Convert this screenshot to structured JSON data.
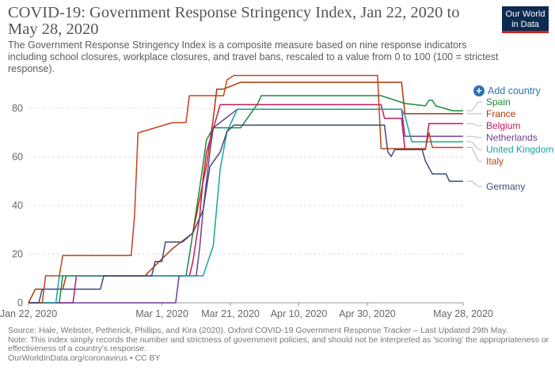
{
  "header": {
    "title": "COVID-19: Government Response Stringency Index, Jan 22, 2020 to May 28, 2020",
    "subtitle": "The Government Response Stringency Index is a composite measure based on nine response indicators including school closures, workplace closures, and travel bans, rescaled to a value from 0 to 100 (100 = strictest response)."
  },
  "logo": {
    "line1": "Our World",
    "line2": "in Data"
  },
  "controls": {
    "add_country": "Add country",
    "add_icon": "plus-circle-icon"
  },
  "footer": {
    "source": "Source: Hale, Webster, Petherick, Phillips, and Kira (2020). Oxford COVID-19 Government Response Tracker – Last Updated 29th May.",
    "note": "Note: This index simply records the number and strictness of government policies, and should not be interpreted as 'scoring' the appropriateness or effectiveness of a country's response.",
    "credit": "OurWorldInData.org/coronavirus • CC BY"
  },
  "chart_data": {
    "type": "line",
    "title": "COVID-19: Government Response Stringency Index, Jan 22, 2020 to May 28, 2020",
    "xlabel": "",
    "ylabel": "",
    "x_ticks": [
      "Jan 22, 2020",
      "Mar 1, 2020",
      "Mar 21, 2020",
      "Apr 10, 2020",
      "Apr 30, 2020",
      "May 28, 2020"
    ],
    "y_ticks": [
      0,
      20,
      40,
      60,
      80
    ],
    "ylim": [
      0,
      95
    ],
    "xlim": [
      "2020-01-22",
      "2020-05-28"
    ],
    "grid": "horizontal dashed",
    "legend": "right, labels at line ends",
    "series": [
      {
        "name": "Spain",
        "color": "#1a8a3a",
        "points": [
          [
            "2020-01-22",
            0
          ],
          [
            "2020-01-31",
            0
          ],
          [
            "2020-02-01",
            11.1
          ],
          [
            "2020-03-08",
            11.1
          ],
          [
            "2020-03-09",
            19.4
          ],
          [
            "2020-03-12",
            47
          ],
          [
            "2020-03-14",
            67
          ],
          [
            "2020-03-16",
            72
          ],
          [
            "2020-03-19",
            72
          ],
          [
            "2020-03-24",
            72
          ],
          [
            "2020-03-29",
            82
          ],
          [
            "2020-03-30",
            85.2
          ],
          [
            "2020-05-04",
            85.2
          ],
          [
            "2020-05-11",
            82
          ],
          [
            "2020-05-17",
            81
          ],
          [
            "2020-05-18",
            83.3
          ],
          [
            "2020-05-19",
            83.3
          ],
          [
            "2020-05-20",
            81
          ],
          [
            "2020-05-25",
            79
          ],
          [
            "2020-05-28",
            79
          ]
        ]
      },
      {
        "name": "France",
        "color": "#b13507",
        "points": [
          [
            "2020-01-22",
            0
          ],
          [
            "2020-01-24",
            5.6
          ],
          [
            "2020-02-01",
            5.6
          ],
          [
            "2020-02-02",
            11.1
          ],
          [
            "2020-02-25",
            11.1
          ],
          [
            "2020-02-29",
            16.7
          ],
          [
            "2020-03-04",
            22.2
          ],
          [
            "2020-03-10",
            28.7
          ],
          [
            "2020-03-14",
            56.5
          ],
          [
            "2020-03-16",
            75.9
          ],
          [
            "2020-03-17",
            87.9
          ],
          [
            "2020-03-19",
            87.9
          ],
          [
            "2020-03-24",
            90.7
          ],
          [
            "2020-05-10",
            90.7
          ],
          [
            "2020-05-11",
            77.8
          ],
          [
            "2020-05-28",
            77.8
          ]
        ]
      },
      {
        "name": "Belgium",
        "color": "#c2185b",
        "points": [
          [
            "2020-01-22",
            0
          ],
          [
            "2020-02-04",
            0
          ],
          [
            "2020-02-05",
            11.1
          ],
          [
            "2020-03-09",
            11.1
          ],
          [
            "2020-03-10",
            16.7
          ],
          [
            "2020-03-12",
            35.2
          ],
          [
            "2020-03-13",
            51
          ],
          [
            "2020-03-14",
            62
          ],
          [
            "2020-03-18",
            81.5
          ],
          [
            "2020-05-04",
            81.5
          ],
          [
            "2020-05-05",
            75.9
          ],
          [
            "2020-05-10",
            75.9
          ],
          [
            "2020-05-11",
            63
          ],
          [
            "2020-05-17",
            63
          ],
          [
            "2020-05-18",
            73.7
          ],
          [
            "2020-05-28",
            73.7
          ]
        ]
      },
      {
        "name": "Netherlands",
        "color": "#6d3e91",
        "points": [
          [
            "2020-01-22",
            0
          ],
          [
            "2020-03-05",
            0
          ],
          [
            "2020-03-06",
            11.1
          ],
          [
            "2020-03-11",
            11.1
          ],
          [
            "2020-03-12",
            22.2
          ],
          [
            "2020-03-13",
            38
          ],
          [
            "2020-03-15",
            62
          ],
          [
            "2020-03-16",
            72
          ],
          [
            "2020-03-23",
            79.6
          ],
          [
            "2020-05-10",
            79.6
          ],
          [
            "2020-05-11",
            68.5
          ],
          [
            "2020-05-28",
            68.5
          ]
        ]
      },
      {
        "name": "United Kingdom",
        "color": "#18a49b",
        "points": [
          [
            "2020-01-22",
            0
          ],
          [
            "2020-01-30",
            0
          ],
          [
            "2020-01-31",
            11.1
          ],
          [
            "2020-03-12",
            11.1
          ],
          [
            "2020-03-13",
            11.1
          ],
          [
            "2020-03-16",
            23.5
          ],
          [
            "2020-03-18",
            55
          ],
          [
            "2020-03-20",
            70.4
          ],
          [
            "2020-03-23",
            79.6
          ],
          [
            "2020-05-10",
            79.6
          ],
          [
            "2020-05-11",
            76.9
          ],
          [
            "2020-05-13",
            66.2
          ],
          [
            "2020-05-28",
            66.2
          ]
        ]
      },
      {
        "name": "Italy",
        "color": "#c3431e",
        "points": [
          [
            "2020-01-22",
            0
          ],
          [
            "2020-01-26",
            0
          ],
          [
            "2020-01-27",
            11.1
          ],
          [
            "2020-01-31",
            11.1
          ],
          [
            "2020-02-01",
            19.4
          ],
          [
            "2020-02-21",
            19.4
          ],
          [
            "2020-02-22",
            36
          ],
          [
            "2020-02-23",
            69.9
          ],
          [
            "2020-03-04",
            74.1
          ],
          [
            "2020-03-08",
            74.1
          ],
          [
            "2020-03-09",
            85.2
          ],
          [
            "2020-03-19",
            85.2
          ],
          [
            "2020-03-20",
            91.7
          ],
          [
            "2020-03-22",
            93.5
          ],
          [
            "2020-05-03",
            93.5
          ],
          [
            "2020-05-04",
            63.4
          ],
          [
            "2020-05-17",
            63.4
          ],
          [
            "2020-05-18",
            70
          ],
          [
            "2020-05-19",
            63.9
          ],
          [
            "2020-05-28",
            63.9
          ]
        ]
      },
      {
        "name": "Germany",
        "color": "#3d4b7a",
        "points": [
          [
            "2020-01-22",
            0
          ],
          [
            "2020-01-25",
            0
          ],
          [
            "2020-01-26",
            5.6
          ],
          [
            "2020-02-12",
            5.6
          ],
          [
            "2020-02-13",
            11.1
          ],
          [
            "2020-02-27",
            11.1
          ],
          [
            "2020-02-28",
            17
          ],
          [
            "2020-03-01",
            17
          ],
          [
            "2020-03-02",
            25
          ],
          [
            "2020-03-07",
            25
          ],
          [
            "2020-03-10",
            28.7
          ],
          [
            "2020-03-13",
            38
          ],
          [
            "2020-03-15",
            56
          ],
          [
            "2020-03-18",
            62
          ],
          [
            "2020-03-20",
            70.4
          ],
          [
            "2020-03-22",
            73.1
          ],
          [
            "2020-05-05",
            73.1
          ],
          [
            "2020-05-06",
            62
          ],
          [
            "2020-05-07",
            60.2
          ],
          [
            "2020-05-08",
            63
          ],
          [
            "2020-05-16",
            63
          ],
          [
            "2020-05-17",
            58.3
          ],
          [
            "2020-05-19",
            53
          ],
          [
            "2020-05-23",
            53
          ],
          [
            "2020-05-24",
            50
          ],
          [
            "2020-05-28",
            50
          ]
        ]
      }
    ]
  }
}
